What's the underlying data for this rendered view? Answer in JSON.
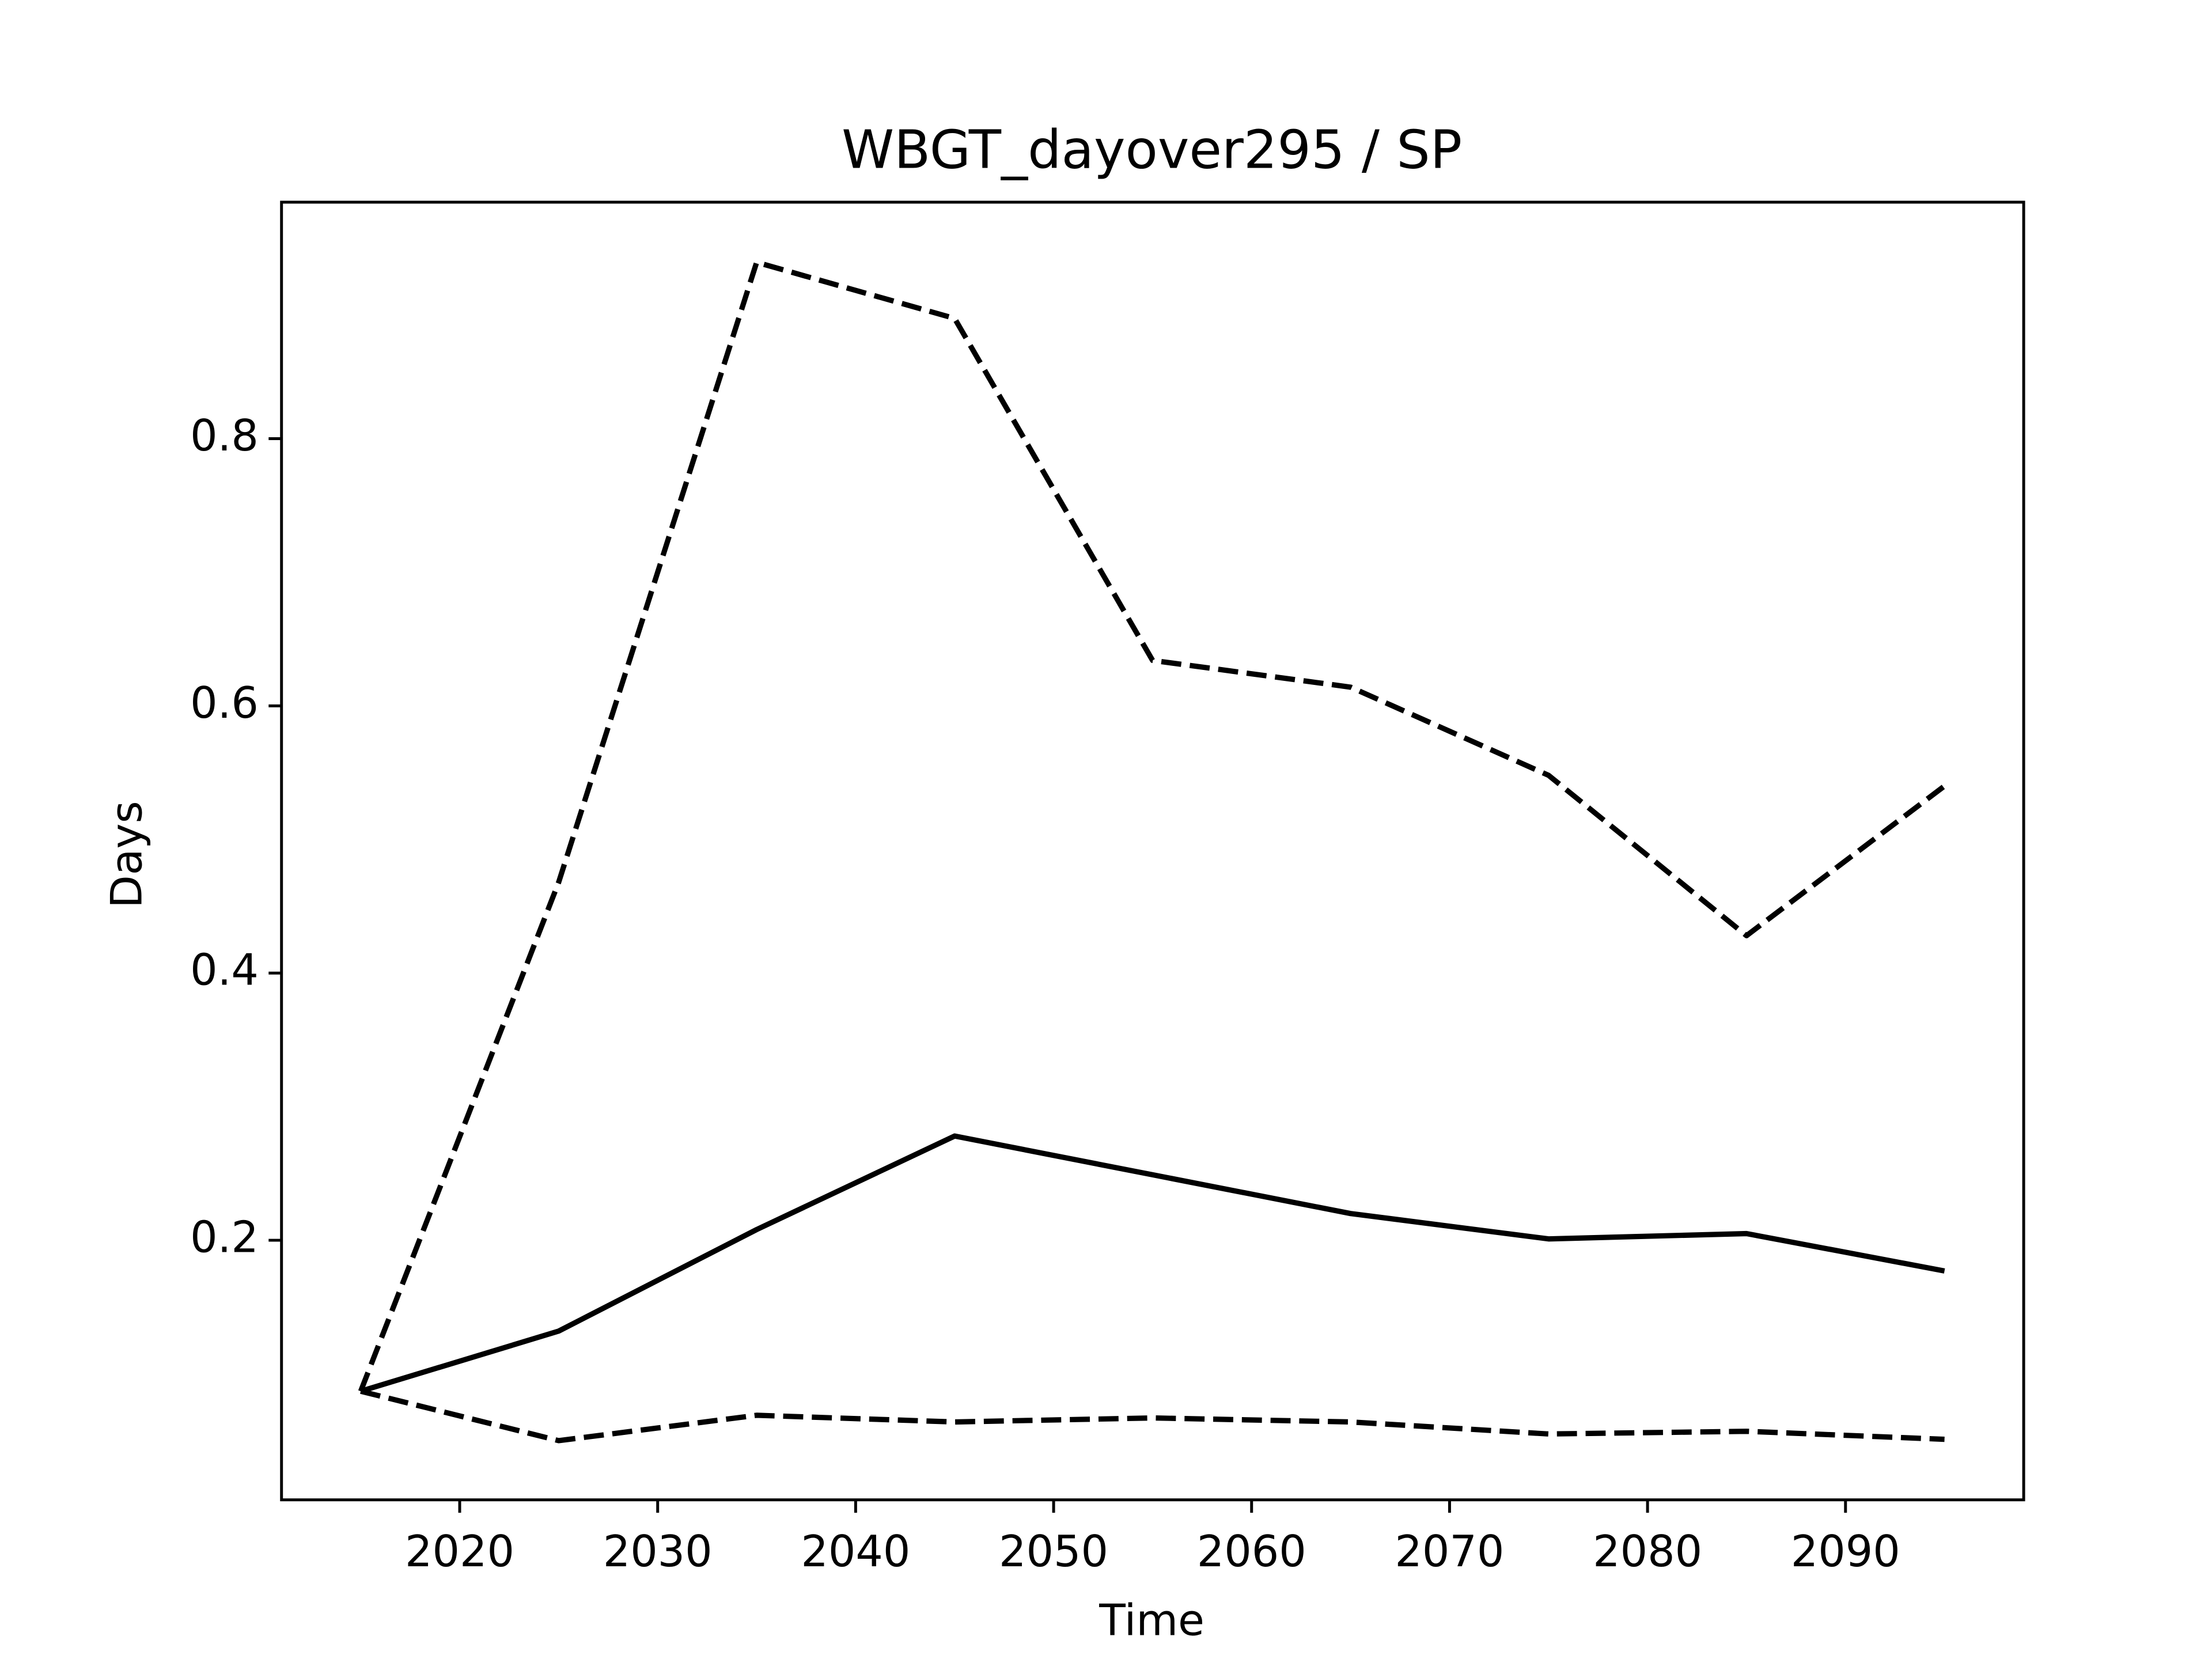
{
  "chart_data": {
    "type": "line",
    "title": "WBGT_dayover295 / SP",
    "xlabel": "Time",
    "ylabel": "Days",
    "x": [
      2015,
      2025,
      2035,
      2045,
      2055,
      2065,
      2075,
      2085,
      2095
    ],
    "series": [
      {
        "color": "#000000",
        "linestyle": "solid",
        "values": [
          0.087,
          0.132,
          0.208,
          0.278,
          0.249,
          0.22,
          0.201,
          0.205,
          0.177
        ]
      },
      {
        "color": "#000000",
        "linestyle": "dashed",
        "values": [
          0.087,
          0.468,
          0.932,
          0.89,
          0.634,
          0.614,
          0.548,
          0.428,
          0.54
        ]
      },
      {
        "color": "#000000",
        "linestyle": "dashed",
        "values": [
          0.087,
          0.05,
          0.069,
          0.064,
          0.067,
          0.064,
          0.055,
          0.057,
          0.051
        ]
      }
    ],
    "xlim": [
      2011,
      2099
    ],
    "xticks": [
      2020,
      2030,
      2040,
      2050,
      2060,
      2070,
      2080,
      2090
    ],
    "ylim": [
      0.0057,
      0.977
    ],
    "yticks": [
      0.2,
      0.4,
      0.6,
      0.8
    ],
    "grid": false
  }
}
